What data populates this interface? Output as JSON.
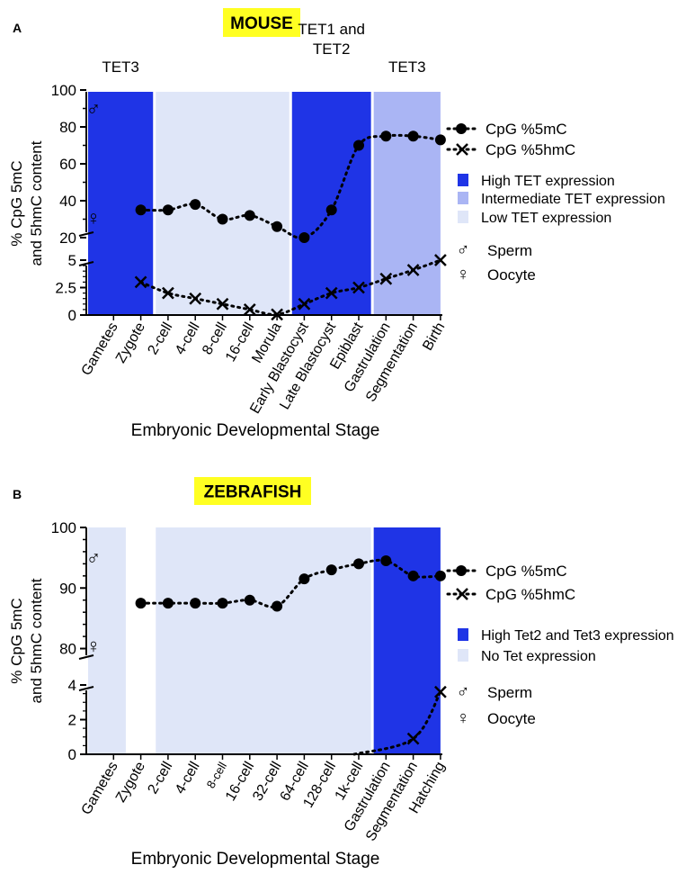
{
  "colors": {
    "high": "#1f34e6",
    "intermediate": "#aab5f4",
    "low": "#dfe6f8",
    "badge": "#ffff22"
  },
  "chart_data": [
    {
      "type": "scatter",
      "panel_letter": "A",
      "title": "MOUSE",
      "xlabel": "Embryonic Developmental Stage",
      "ylabel": "% CpG 5mC and 5hmC content",
      "ylabel_lines": [
        "% CpG 5mC",
        "and 5hmC content"
      ],
      "categories": [
        "Gametes",
        "Zygote",
        "2-cell",
        "4-cell",
        "8-cell",
        "16-cell",
        "Morula",
        "Early Blastocyst",
        "Late Blastocyst",
        "Epiblast",
        "Gastrulation",
        "Segmentation",
        "Birth"
      ],
      "y_upper": {
        "range": [
          20,
          100
        ],
        "ticks": [
          "20",
          "40",
          "60",
          "80",
          "100"
        ]
      },
      "y_lower": {
        "range": [
          0,
          5
        ],
        "ticks": [
          "0",
          "2.5",
          "5"
        ]
      },
      "series": [
        {
          "name": "CpG %5mC",
          "marker": "circle",
          "axis": "upper",
          "values": [
            null,
            35,
            35,
            38,
            30,
            32,
            26,
            20,
            35,
            70,
            75,
            75,
            73
          ]
        },
        {
          "name": "CpG %5hmC",
          "marker": "cross",
          "axis": "lower",
          "values": [
            null,
            3.0,
            2.0,
            1.5,
            1.0,
            0.5,
            0.05,
            1.0,
            2.0,
            2.5,
            3.3,
            4.1,
            5.0
          ]
        }
      ],
      "gamete_marks": [
        {
          "symbol": "♂",
          "axis": "upper",
          "value": 90
        },
        {
          "symbol": "♀",
          "axis": "upper",
          "value": 31
        }
      ],
      "bands": [
        {
          "level": "high",
          "from": 0,
          "to": 1,
          "label": "TET3"
        },
        {
          "level": "low",
          "from": 2,
          "to": 6,
          "label": ""
        },
        {
          "level": "high",
          "from": 7,
          "to": 9,
          "label": "TET1 and TET2",
          "label_lines": [
            "TET1 and",
            "TET2"
          ]
        },
        {
          "level": "intermediate",
          "from": 10,
          "to": 12,
          "label": "TET3"
        }
      ],
      "legend": {
        "series": [
          "CpG %5mC",
          "CpG %5hmC"
        ],
        "bands": [
          {
            "level": "high",
            "label": "High TET expression"
          },
          {
            "level": "intermediate",
            "label": "Intermediate TET expression"
          },
          {
            "level": "low",
            "label": "Low TET expression"
          }
        ],
        "symbols": [
          {
            "symbol": "♂",
            "label": "Sperm"
          },
          {
            "symbol": "♀",
            "label": "Oocyte"
          }
        ]
      }
    },
    {
      "type": "scatter",
      "panel_letter": "B",
      "title": "ZEBRAFISH",
      "xlabel": "Embryonic Developmental Stage",
      "ylabel": "% CpG 5mC and 5hmC content",
      "ylabel_lines": [
        "% CpG 5mC",
        "and 5hmC content"
      ],
      "categories": [
        "Gametes",
        "Zygote",
        "2-cell",
        "4-cell",
        "8-cell",
        "16-cell",
        "32-cell",
        "64-cell",
        "128-cell",
        "1k-cell",
        "Gastrulation",
        "Segmentation",
        "Hatching"
      ],
      "y_upper": {
        "range": [
          78,
          100
        ],
        "ticks": [
          "80",
          "90",
          "100"
        ]
      },
      "y_lower": {
        "range": [
          0,
          4
        ],
        "ticks": [
          "0",
          "2",
          "4"
        ]
      },
      "series": [
        {
          "name": "CpG %5mC",
          "marker": "circle",
          "axis": "upper",
          "values": [
            null,
            87.5,
            87.5,
            87.5,
            87.5,
            88,
            87,
            91.5,
            93,
            94,
            94.5,
            92,
            92
          ]
        },
        {
          "name": "CpG %5hmC",
          "marker": "cross",
          "axis": "lower",
          "values": [
            null,
            null,
            null,
            null,
            null,
            null,
            null,
            null,
            null,
            null,
            null,
            0.9,
            3.6
          ]
        }
      ],
      "gamete_marks": [
        {
          "symbol": "♂",
          "axis": "upper",
          "value": 95
        },
        {
          "symbol": "♀",
          "axis": "upper",
          "value": 80.5
        }
      ],
      "bands": [
        {
          "level": "low",
          "from": 0,
          "to": 0,
          "label": ""
        },
        {
          "level": "low",
          "from": 2,
          "to": 9,
          "label": ""
        },
        {
          "level": "high",
          "from": 10,
          "to": 12,
          "label": ""
        }
      ],
      "legend": {
        "series": [
          "CpG %5mC",
          "CpG %5hmC"
        ],
        "bands": [
          {
            "level": "high",
            "label": "High Tet2 and Tet3 expression"
          },
          {
            "level": "low",
            "label": "No Tet expression"
          }
        ],
        "symbols": [
          {
            "symbol": "♂",
            "label": "Sperm"
          },
          {
            "symbol": "♀",
            "label": "Oocyte"
          }
        ]
      }
    }
  ]
}
